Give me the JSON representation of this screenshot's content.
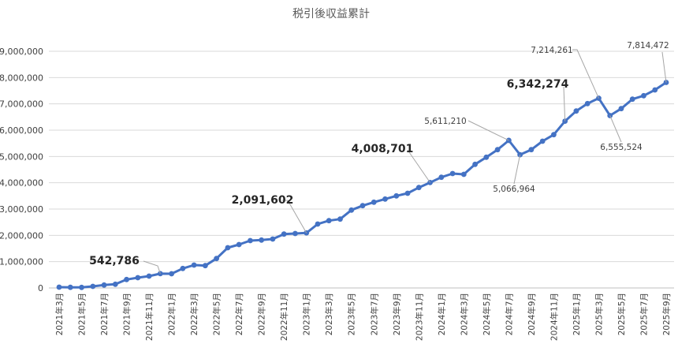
{
  "chart_data": {
    "type": "line",
    "title": "税引後収益累計",
    "xlabel": "",
    "ylabel": "",
    "ylim": [
      0,
      9000000
    ],
    "yticks": [
      0,
      1000000,
      2000000,
      3000000,
      4000000,
      5000000,
      6000000,
      7000000,
      8000000,
      9000000
    ],
    "ytick_labels": [
      "0",
      "1,000,000",
      "2,000,000",
      "3,000,000",
      "4,000,000",
      "5,000,000",
      "6,000,000",
      "7,000,000",
      "8,000,000",
      "9,000,000"
    ],
    "grid": true,
    "legend": "none",
    "line_color": "#4472c4",
    "categories": [
      "2021年3月",
      "2021年4月",
      "2021年5月",
      "2021年6月",
      "2021年7月",
      "2021年8月",
      "2021年9月",
      "2021年10月",
      "2021年11月",
      "2021年12月",
      "2022年1月",
      "2022年2月",
      "2022年3月",
      "2022年4月",
      "2022年5月",
      "2022年6月",
      "2022年7月",
      "2022年8月",
      "2022年9月",
      "2022年10月",
      "2022年11月",
      "2022年12月",
      "2023年1月",
      "2023年2月",
      "2023年3月",
      "2023年4月",
      "2023年5月",
      "2023年6月",
      "2023年7月",
      "2023年8月",
      "2023年9月",
      "2023年10月",
      "2023年11月",
      "2023年12月",
      "2024年1月",
      "2024年2月",
      "2024年3月",
      "2024年4月",
      "2024年5月",
      "2024年6月",
      "2024年7月",
      "2024年8月",
      "2024年9月",
      "2024年10月",
      "2024年11月",
      "2024年12月",
      "2025年1月",
      "2025年2月",
      "2025年3月",
      "2025年4月",
      "2025年5月",
      "2025年6月",
      "2025年7月",
      "2025年8月",
      "2025年9月"
    ],
    "tick_labels": [
      "2021年3月",
      "2021年5月",
      "2021年7月",
      "2021年9月",
      "2021年11月",
      "2022年1月",
      "2022年3月",
      "2022年5月",
      "2022年7月",
      "2022年9月",
      "2022年11月",
      "2023年1月",
      "2023年3月",
      "2023年5月",
      "2023年7月",
      "2023年9月",
      "2023年11月",
      "2024年1月",
      "2024年3月",
      "2024年5月",
      "2024年7月",
      "2024年9月",
      "2024年11月",
      "2025年1月",
      "2025年3月",
      "2025年5月",
      "2025年7月",
      "2025年9月"
    ],
    "values": [
      30000,
      25000,
      20000,
      60000,
      110000,
      140000,
      320000,
      390000,
      450000,
      542786,
      540000,
      740000,
      870000,
      850000,
      1120000,
      1530000,
      1650000,
      1800000,
      1820000,
      1860000,
      2050000,
      2070000,
      2091602,
      2430000,
      2560000,
      2620000,
      2960000,
      3130000,
      3260000,
      3380000,
      3500000,
      3600000,
      3820000,
      4008701,
      4210000,
      4350000,
      4320000,
      4700000,
      4970000,
      5260000,
      5611210,
      5066964,
      5260000,
      5580000,
      5830000,
      6342274,
      6730000,
      7010000,
      7214261,
      6555524,
      6820000,
      7180000,
      7310000,
      7530000,
      7814472
    ],
    "annotations": [
      {
        "index": 9,
        "label": "542,786",
        "style": "big"
      },
      {
        "index": 22,
        "label": "2,091,602",
        "style": "big"
      },
      {
        "index": 33,
        "label": "4,008,701",
        "style": "big"
      },
      {
        "index": 40,
        "label": "5,611,210",
        "style": "small"
      },
      {
        "index": 41,
        "label": "5,066,964",
        "style": "small"
      },
      {
        "index": 45,
        "label": "6,342,274",
        "style": "big"
      },
      {
        "index": 48,
        "label": "7,214,261",
        "style": "small"
      },
      {
        "index": 49,
        "label": "6,555,524",
        "style": "small"
      },
      {
        "index": 54,
        "label": "7,814,472",
        "style": "small"
      }
    ]
  }
}
